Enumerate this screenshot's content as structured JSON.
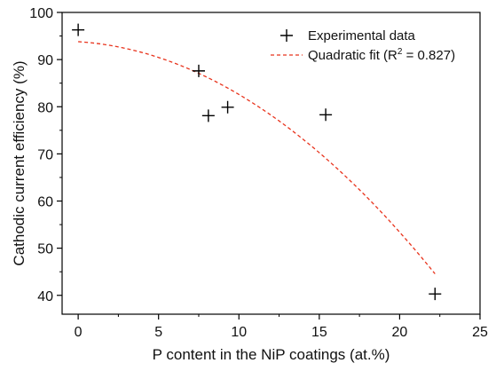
{
  "chart_data": {
    "type": "scatter",
    "xlabel": "P content in the NiP coatings (at.%)",
    "ylabel": "Cathodic current efficiency (%)",
    "xlim": [
      -1,
      25
    ],
    "ylim": [
      36,
      100
    ],
    "x_ticks": [
      0,
      5,
      10,
      15,
      20,
      25
    ],
    "y_ticks": [
      40,
      50,
      60,
      70,
      80,
      90,
      100
    ],
    "grid": false,
    "legend_position": "top-right",
    "series": [
      {
        "name": "Experimental data",
        "kind": "scatter",
        "marker": "plus",
        "color": "#000000",
        "points": [
          {
            "x": 0.0,
            "y": 96.3
          },
          {
            "x": 7.5,
            "y": 87.6
          },
          {
            "x": 8.1,
            "y": 78.1
          },
          {
            "x": 9.3,
            "y": 79.9
          },
          {
            "x": 15.4,
            "y": 78.3
          },
          {
            "x": 22.2,
            "y": 40.3
          }
        ]
      },
      {
        "name": "Quadratic fit (R",
        "name_sup": "2",
        "name_suffix": " = 0.827)",
        "kind": "line",
        "style": "dashed",
        "color": "#e8331c",
        "x_range": [
          0,
          22.2
        ],
        "coefficients": {
          "a": 93.8,
          "b": -0.22,
          "c": -0.09
        }
      }
    ]
  }
}
